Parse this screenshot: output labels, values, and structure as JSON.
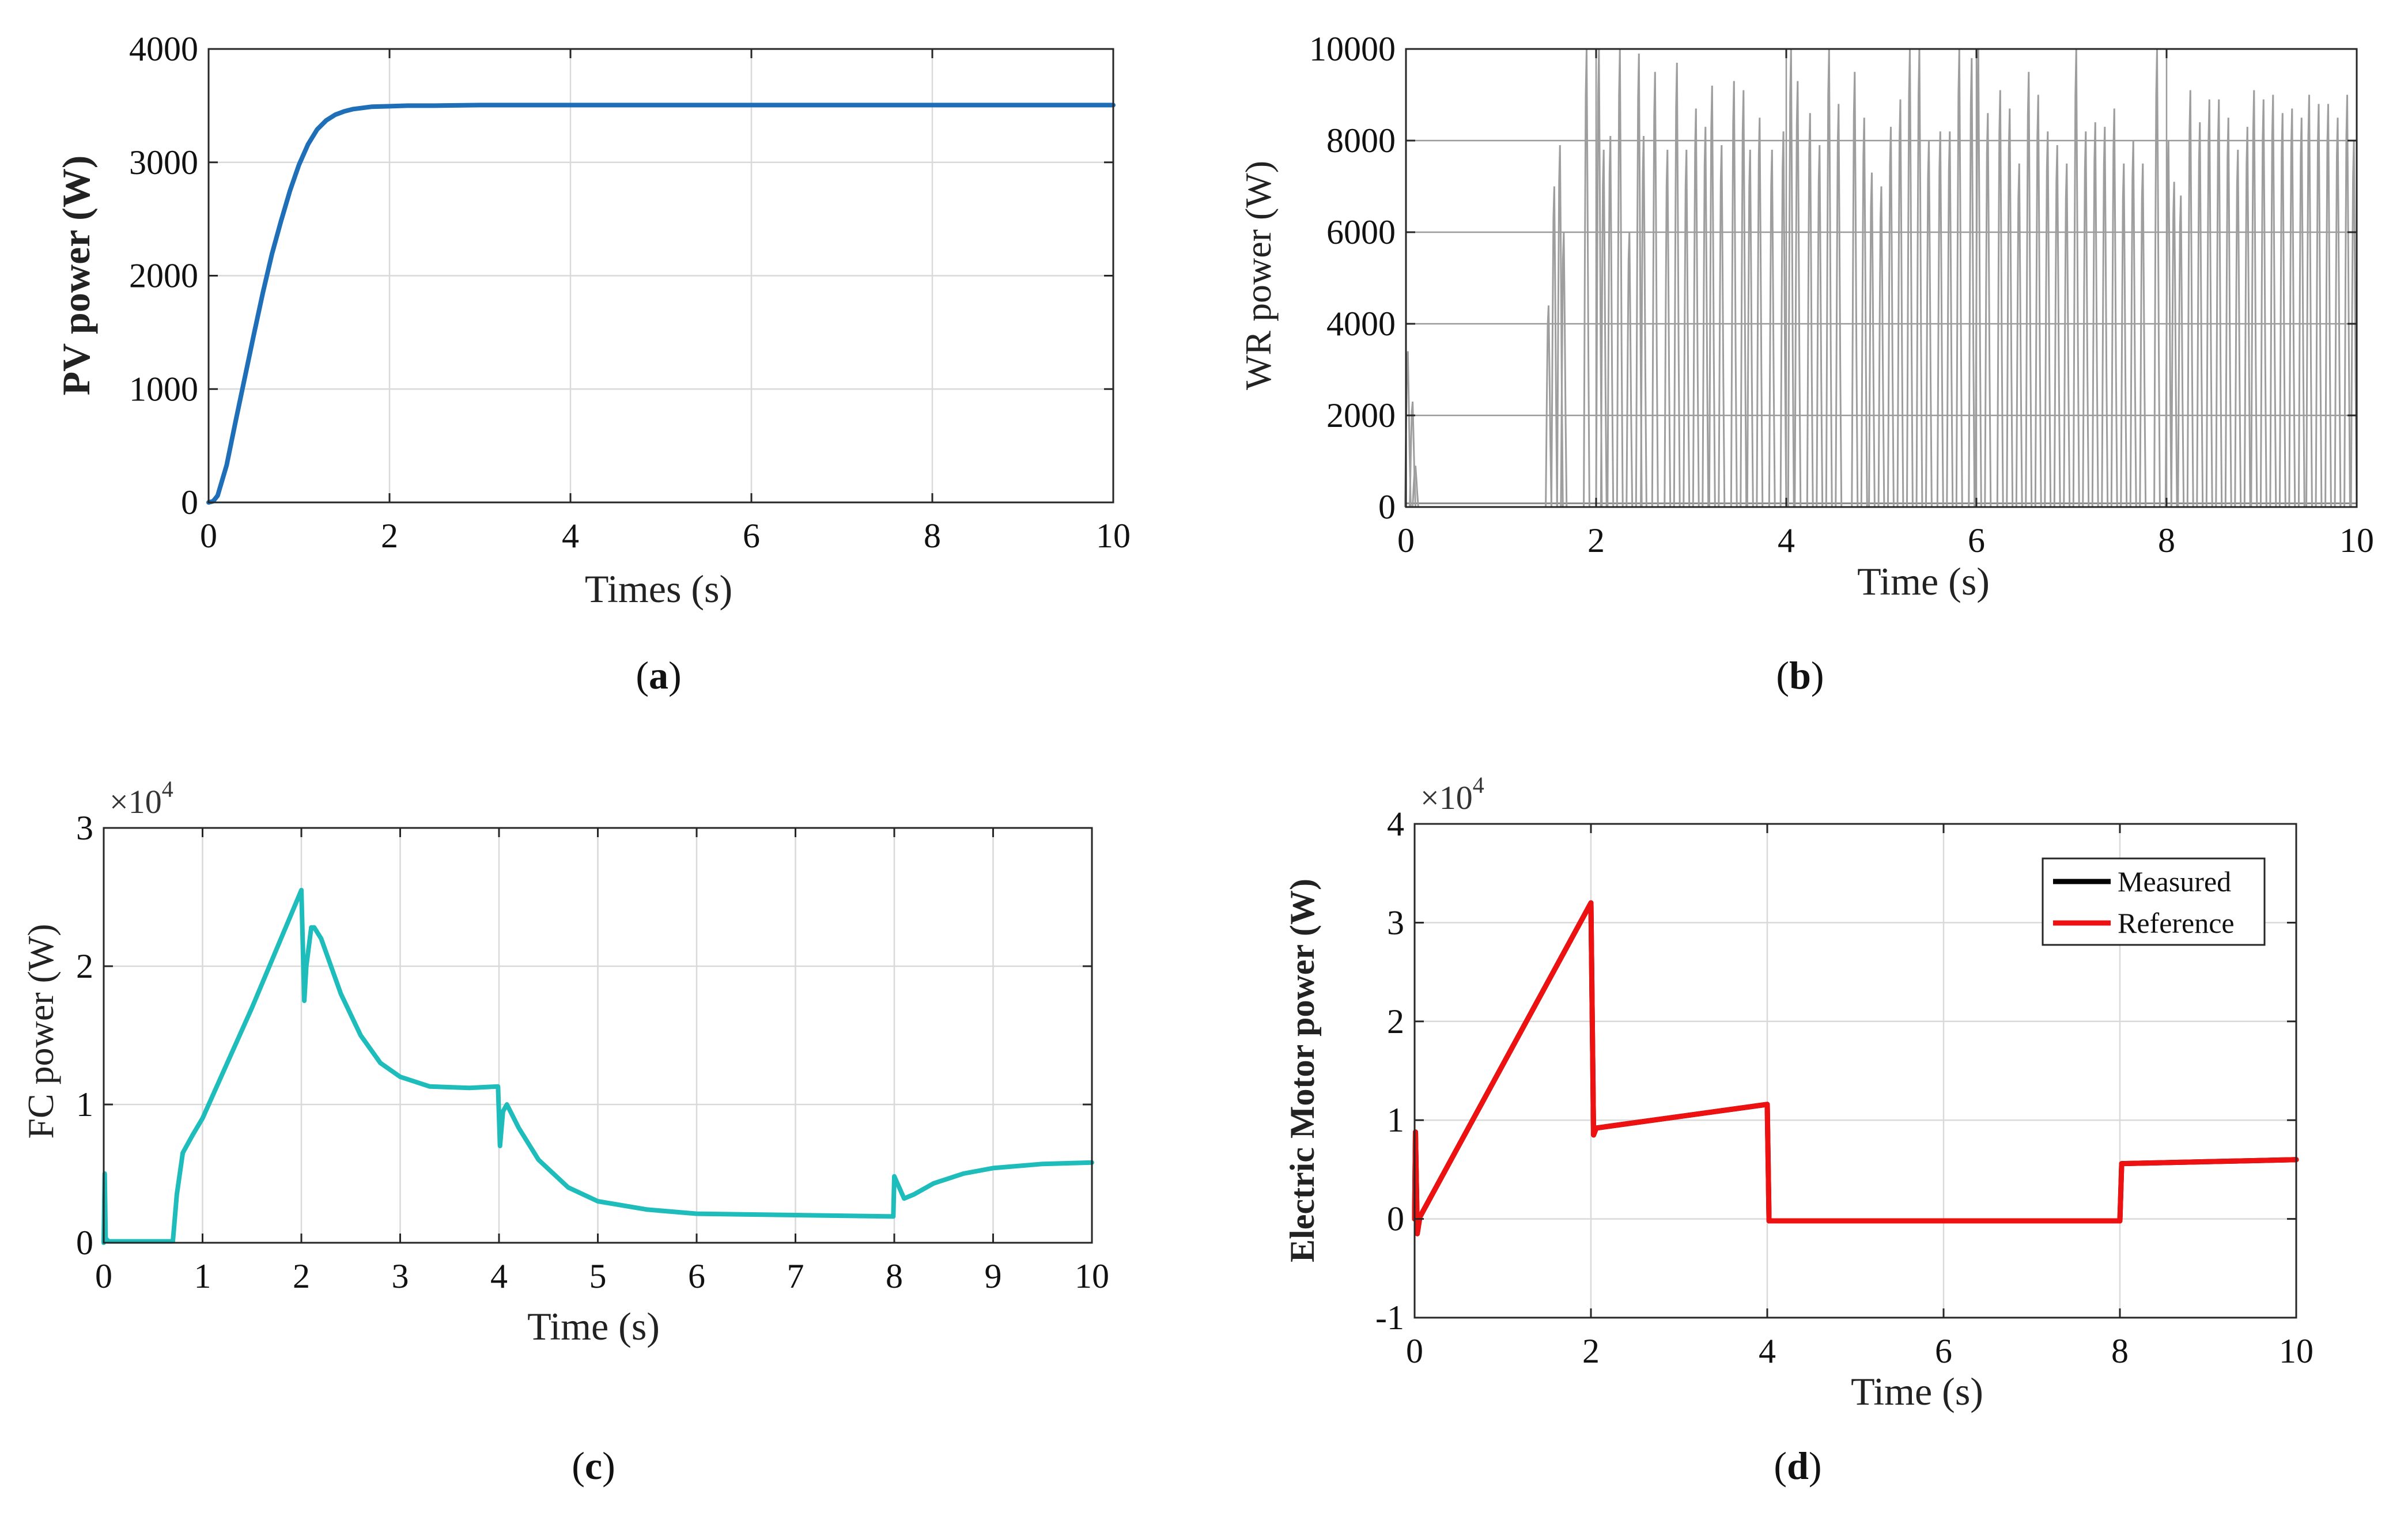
{
  "chart_data": [
    {
      "type": "line",
      "caption_letter": "a",
      "xlabel": "Times (s)",
      "ylabel": "PV power (W)",
      "xlim": [
        0,
        10
      ],
      "ylim": [
        0,
        4000
      ],
      "xticks": [
        0,
        2,
        4,
        6,
        8,
        10
      ],
      "yticks": [
        0,
        1000,
        2000,
        3000,
        4000
      ],
      "exponent": "",
      "grid": true,
      "series": [
        {
          "name": "PV power",
          "color": "#1f6fb8",
          "x": [
            0,
            0.05,
            0.1,
            0.2,
            0.3,
            0.4,
            0.5,
            0.6,
            0.7,
            0.8,
            0.9,
            1.0,
            1.1,
            1.2,
            1.3,
            1.4,
            1.5,
            1.6,
            1.7,
            1.8,
            2.0,
            2.2,
            2.5,
            3.0,
            4.0,
            6.0,
            8.0,
            10.0
          ],
          "y": [
            0,
            10,
            60,
            330,
            720,
            1100,
            1480,
            1850,
            2190,
            2480,
            2750,
            2980,
            3160,
            3290,
            3370,
            3420,
            3450,
            3470,
            3480,
            3490,
            3495,
            3500,
            3500,
            3505,
            3505,
            3505,
            3505,
            3505
          ]
        }
      ]
    },
    {
      "type": "line",
      "caption_letter": "b",
      "xlabel": "Time (s)",
      "ylabel": "WR power (W)",
      "xlim": [
        0,
        10
      ],
      "ylim": [
        0,
        10000
      ],
      "xticks": [
        0,
        2,
        4,
        6,
        8,
        10
      ],
      "yticks": [
        0,
        2000,
        4000,
        6000,
        8000,
        10000
      ],
      "exponent": "",
      "grid": true,
      "spike_times": [
        0.02,
        0.07,
        0.1,
        1.5,
        1.56,
        1.62,
        1.66,
        1.9,
        2.03,
        2.08,
        2.15,
        2.25,
        2.35,
        2.45,
        2.5,
        2.62,
        2.75,
        2.85,
        2.95,
        3.05,
        3.15,
        3.22,
        3.32,
        3.45,
        3.55,
        3.62,
        3.72,
        3.85,
        3.97,
        4.05,
        4.12,
        4.25,
        4.35,
        4.45,
        4.55,
        4.72,
        4.82,
        4.9,
        5.0,
        5.1,
        5.2,
        5.3,
        5.4,
        5.5,
        5.62,
        5.72,
        5.82,
        5.95,
        6.02,
        6.12,
        6.25,
        6.35,
        6.45,
        6.55,
        6.65,
        6.75,
        6.85,
        6.95,
        7.05,
        7.15,
        7.25,
        7.35,
        7.45,
        7.55,
        7.65,
        7.75,
        7.9,
        8.02,
        8.08,
        8.15,
        8.25,
        8.35,
        8.45,
        8.55,
        8.65,
        8.75,
        8.85,
        8.92,
        9.02,
        9.12,
        9.22,
        9.32,
        9.42,
        9.5,
        9.6,
        9.7,
        9.8,
        9.9,
        9.97
      ],
      "spike_heights": [
        3400,
        2300,
        900,
        4400,
        7000,
        7900,
        6000,
        10000,
        10000,
        7800,
        8100,
        10000,
        6000,
        9900,
        8100,
        9500,
        7800,
        9700,
        7800,
        8700,
        8300,
        9200,
        7900,
        9300,
        9100,
        7800,
        8500,
        7800,
        8200,
        10000,
        9300,
        8600,
        7900,
        10000,
        8800,
        9500,
        8500,
        7300,
        7000,
        8300,
        8900,
        10000,
        10000,
        8000,
        8200,
        8200,
        10000,
        9800,
        10000,
        8600,
        9100,
        8700,
        7500,
        9500,
        9000,
        8200,
        7900,
        7500,
        10000,
        8200,
        8400,
        8300,
        8700,
        7500,
        8000,
        7500,
        10000,
        8000,
        7100,
        6800,
        9100,
        8400,
        8900,
        8900,
        8500,
        7800,
        8300,
        9100,
        8900,
        9000,
        8600,
        8700,
        8500,
        9000,
        8800,
        8800,
        8500,
        9000,
        8000
      ]
    },
    {
      "type": "line",
      "caption_letter": "c",
      "xlabel": "Time (s)",
      "ylabel": "FC power (W)",
      "xlim": [
        0,
        10
      ],
      "ylim": [
        0,
        30000
      ],
      "xticks": [
        0,
        1,
        2,
        3,
        4,
        5,
        6,
        7,
        8,
        9,
        10
      ],
      "yticks": [
        0,
        10000,
        20000,
        30000
      ],
      "ytick_labels": [
        "0",
        "1",
        "2",
        "3"
      ],
      "exponent_base": "×10",
      "exponent_power": "4",
      "grid": true,
      "series": [
        {
          "name": "FC power",
          "color": "#1fbcbc",
          "x": [
            0,
            0.01,
            0.02,
            0.05,
            0.7,
            0.74,
            0.8,
            0.9,
            1.0,
            1.5,
            2.0,
            2.03,
            2.05,
            2.1,
            2.13,
            2.2,
            2.4,
            2.6,
            2.8,
            3.0,
            3.3,
            3.7,
            3.99,
            4.01,
            4.04,
            4.08,
            4.2,
            4.4,
            4.7,
            5.0,
            5.5,
            6.0,
            7.0,
            7.99,
            8.0,
            8.1,
            8.2,
            8.4,
            8.7,
            9.0,
            9.5,
            10.0
          ],
          "y": [
            0,
            5000,
            300,
            100,
            100,
            3500,
            6500,
            7800,
            9000,
            17000,
            25500,
            17500,
            20000,
            22800,
            22800,
            22000,
            18000,
            15000,
            13000,
            12000,
            11300,
            11200,
            11300,
            7000,
            9500,
            10000,
            8300,
            6000,
            4000,
            3000,
            2400,
            2100,
            2000,
            1900,
            4800,
            3200,
            3500,
            4300,
            5000,
            5400,
            5700,
            5800
          ]
        }
      ]
    },
    {
      "type": "line",
      "caption_letter": "d",
      "xlabel": "Time (s)",
      "ylabel": "Electric Motor power (W)",
      "xlim": [
        0,
        10
      ],
      "ylim": [
        -10000,
        40000
      ],
      "xticks": [
        0,
        2,
        4,
        6,
        8,
        10
      ],
      "yticks": [
        -10000,
        0,
        10000,
        20000,
        30000,
        40000
      ],
      "ytick_labels": [
        "-1",
        "0",
        "1",
        "2",
        "3",
        "4"
      ],
      "exponent_base": "×10",
      "exponent_power": "4",
      "grid": true,
      "legend": [
        "Measured",
        "Reference"
      ],
      "legend_position": "top-right",
      "series": [
        {
          "name": "Measured",
          "color": "#000000",
          "x": [
            0,
            0.01,
            0.03,
            0.06,
            2.0,
            2.03,
            2.06,
            4.0,
            4.02,
            8.0,
            8.02,
            10.0
          ],
          "y": [
            0,
            8800,
            -1500,
            200,
            32000,
            8500,
            9200,
            11600,
            -200,
            -200,
            5600,
            6000
          ]
        },
        {
          "name": "Reference",
          "color": "#ee1111",
          "x": [
            0,
            0.01,
            0.03,
            0.06,
            2.0,
            2.03,
            2.06,
            4.0,
            4.02,
            8.0,
            8.02,
            10.0
          ],
          "y": [
            0,
            8800,
            -1500,
            200,
            32000,
            8500,
            9200,
            11600,
            -200,
            -200,
            5600,
            6000
          ]
        }
      ]
    }
  ]
}
